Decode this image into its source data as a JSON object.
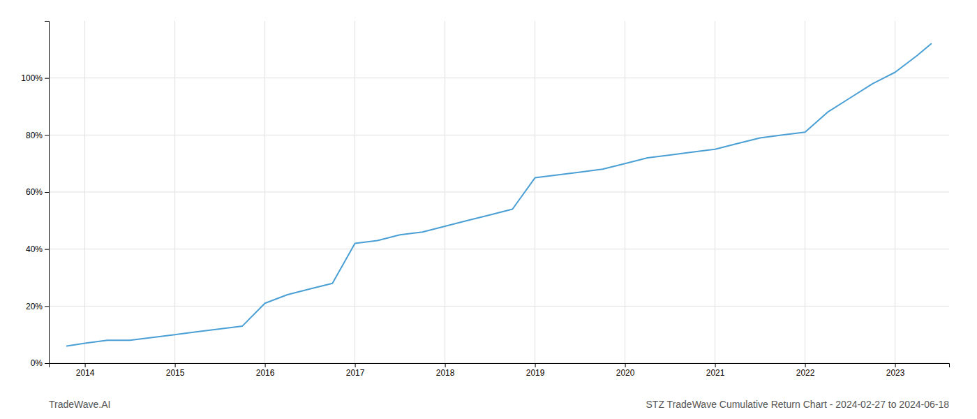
{
  "chart_data": {
    "type": "line",
    "title": "STZ TradeWave Cumulative Return Chart - 2024-02-27 to 2024-06-18",
    "annotations": [
      "TradeWave.AI"
    ],
    "x": [
      2013.8,
      2014.0,
      2014.25,
      2014.5,
      2014.75,
      2015.0,
      2015.25,
      2015.5,
      2015.75,
      2016.0,
      2016.25,
      2016.5,
      2016.75,
      2017.0,
      2017.25,
      2017.5,
      2017.75,
      2018.0,
      2018.25,
      2018.5,
      2018.75,
      2019.0,
      2019.25,
      2019.5,
      2019.75,
      2020.0,
      2020.25,
      2020.5,
      2020.75,
      2021.0,
      2021.25,
      2021.5,
      2021.75,
      2022.0,
      2022.25,
      2022.5,
      2022.75,
      2023.0,
      2023.25,
      2023.4
    ],
    "values": [
      0.06,
      0.07,
      0.08,
      0.08,
      0.09,
      0.1,
      0.11,
      0.12,
      0.13,
      0.21,
      0.24,
      0.26,
      0.28,
      0.42,
      0.43,
      0.45,
      0.46,
      0.48,
      0.5,
      0.52,
      0.54,
      0.65,
      0.66,
      0.67,
      0.68,
      0.7,
      0.72,
      0.73,
      0.74,
      0.75,
      0.77,
      0.79,
      0.8,
      0.81,
      0.88,
      0.93,
      0.98,
      1.02,
      1.08,
      1.12
    ],
    "color": "#4a9fd4",
    "xlim": [
      2013.6,
      2023.6
    ],
    "xticks": [
      2014,
      2015,
      2016,
      2017,
      2018,
      2019,
      2020,
      2021,
      2022,
      2023
    ],
    "ylim": [
      0.0,
      1.2
    ],
    "yticks": [
      {
        "value": 0.0,
        "label": "0%"
      },
      {
        "value": 0.2,
        "label": "20%"
      },
      {
        "value": 0.4,
        "label": "40%"
      },
      {
        "value": 0.6,
        "label": "60%"
      },
      {
        "value": 0.8,
        "label": "80%"
      },
      {
        "value": 1.0,
        "label": "100%"
      }
    ],
    "grid": true
  }
}
